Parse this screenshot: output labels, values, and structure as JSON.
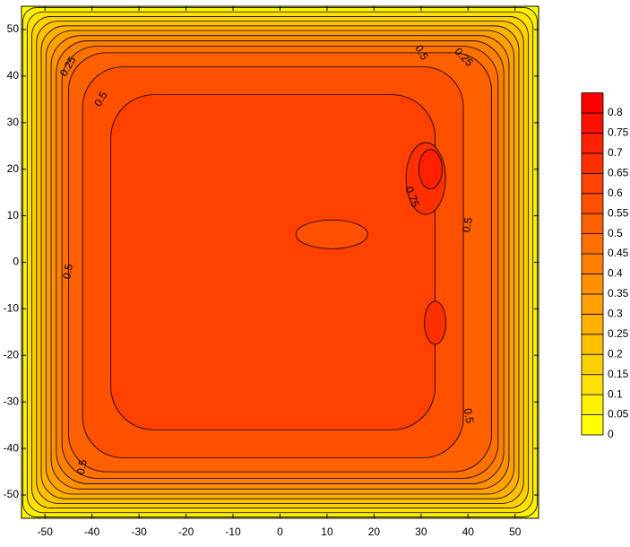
{
  "chart_data": {
    "type": "contour",
    "xlim": [
      -55,
      55
    ],
    "ylim": [
      -55,
      55
    ],
    "xticks": [
      -50,
      -40,
      -30,
      -20,
      -10,
      0,
      10,
      20,
      30,
      40,
      50
    ],
    "yticks": [
      -50,
      -40,
      -30,
      -20,
      -10,
      0,
      10,
      20,
      30,
      40,
      50
    ],
    "levels": [
      0,
      0.05,
      0.1,
      0.15,
      0.2,
      0.25,
      0.3,
      0.35,
      0.4,
      0.45,
      0.5,
      0.55,
      0.6,
      0.65,
      0.7,
      0.75,
      0.8
    ],
    "colors": [
      "#ffff00",
      "#fff000",
      "#ffe000",
      "#ffd000",
      "#ffc000",
      "#ffb000",
      "#ffa000",
      "#ff9000",
      "#ff8000",
      "#ff7000",
      "#ff6000",
      "#ff5000",
      "#ff4000",
      "#ff3000",
      "#ff2000",
      "#ff1000",
      "#ff0000"
    ],
    "contour_labels": [
      0.25,
      0.5,
      0.5,
      0.25,
      0.75,
      0.5,
      0.5,
      0.5,
      0.5
    ]
  }
}
